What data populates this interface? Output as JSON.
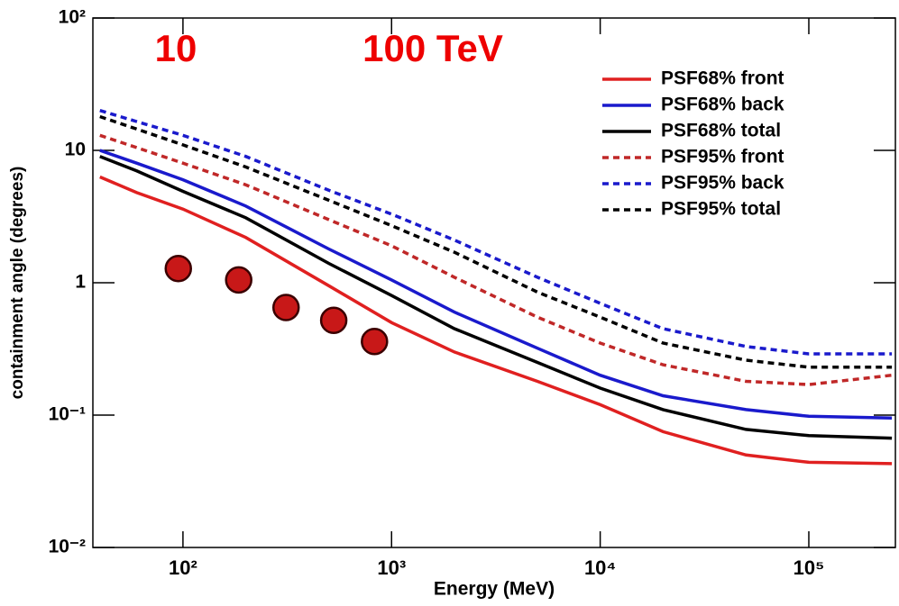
{
  "chart_data": {
    "type": "line",
    "xlabel": "Energy (MeV)",
    "ylabel": "containment angle (degrees)",
    "annotations": [
      "10",
      "100 TeV"
    ],
    "annotation_color": "#ee0000",
    "xscale": "log",
    "yscale": "log",
    "xlim": [
      37,
      260000
    ],
    "ylim": [
      0.01,
      100
    ],
    "xticks": [
      {
        "value": 100,
        "label": "10²"
      },
      {
        "value": 1000,
        "label": "10³"
      },
      {
        "value": 10000,
        "label": "10⁴"
      },
      {
        "value": 100000,
        "label": "10⁵"
      }
    ],
    "yticks": [
      {
        "value": 0.01,
        "label": "10⁻²"
      },
      {
        "value": 0.1,
        "label": "10⁻¹"
      },
      1,
      10,
      {
        "value": 100,
        "label": "10²"
      }
    ],
    "legend": "upper right",
    "x": [
      40,
      60,
      100,
      200,
      500,
      1000,
      2000,
      5000,
      10000,
      20000,
      50000,
      100000,
      250000
    ],
    "series": [
      {
        "name": "PSF68% front",
        "color": "#e02020",
        "linestyle": "solid",
        "values": [
          6.3,
          4.8,
          3.6,
          2.2,
          0.95,
          0.5,
          0.3,
          0.18,
          0.12,
          0.075,
          0.05,
          0.044,
          0.043
        ]
      },
      {
        "name": "PSF68% back",
        "color": "#1a1acc",
        "linestyle": "solid",
        "values": [
          10,
          8,
          6,
          3.8,
          1.8,
          1.05,
          0.6,
          0.32,
          0.2,
          0.14,
          0.11,
          0.098,
          0.095
        ]
      },
      {
        "name": "PSF68% total",
        "color": "#000000",
        "linestyle": "solid",
        "values": [
          9,
          7,
          4.9,
          3.1,
          1.4,
          0.8,
          0.45,
          0.25,
          0.16,
          0.11,
          0.078,
          0.07,
          0.067
        ]
      },
      {
        "name": "PSF95% front",
        "color": "#c02828",
        "linestyle": "dashed",
        "values": [
          13,
          10.5,
          8,
          5.5,
          3,
          1.9,
          1.1,
          0.55,
          0.35,
          0.24,
          0.18,
          0.17,
          0.2
        ]
      },
      {
        "name": "PSF95% back",
        "color": "#1a1acc",
        "linestyle": "dashed",
        "values": [
          20,
          16.5,
          13,
          9,
          5,
          3.3,
          2.1,
          1.1,
          0.7,
          0.45,
          0.33,
          0.29,
          0.29
        ]
      },
      {
        "name": "PSF95% total",
        "color": "#000000",
        "linestyle": "dashed",
        "values": [
          18,
          14.5,
          11,
          7.5,
          4.2,
          2.7,
          1.7,
          0.85,
          0.55,
          0.35,
          0.26,
          0.23,
          0.23
        ]
      }
    ],
    "points": {
      "color": "#c81818",
      "x": [
        95,
        185,
        312,
        528,
        828
      ],
      "y": [
        1.28,
        1.05,
        0.65,
        0.52,
        0.36
      ]
    }
  }
}
